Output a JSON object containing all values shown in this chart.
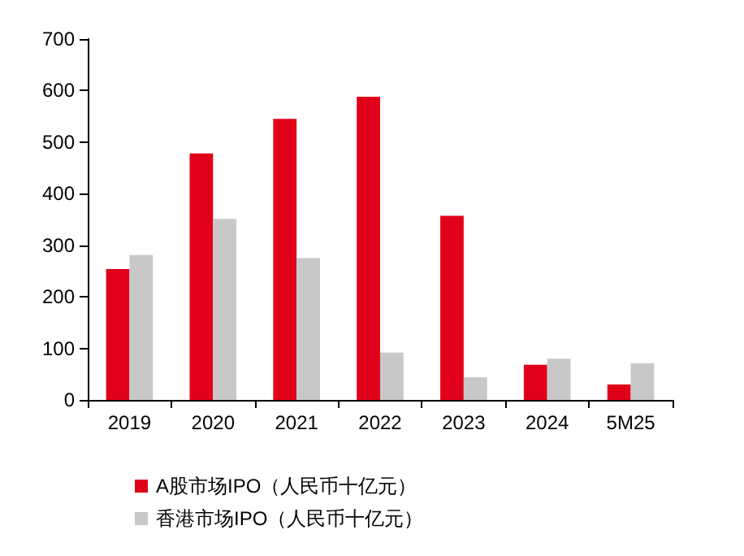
{
  "chart_data": {
    "type": "bar",
    "categories": [
      "2019",
      "2020",
      "2021",
      "2022",
      "2023",
      "2024",
      "5M25"
    ],
    "series": [
      {
        "name": "A股市场IPO（人民币十亿元）",
        "color": "#e1001a",
        "values": [
          254,
          478,
          545,
          588,
          357,
          68,
          30
        ]
      },
      {
        "name": "香港市场IPO（人民币十亿元）",
        "color": "#c8c8c8",
        "values": [
          281,
          351,
          275,
          92,
          44,
          80,
          71
        ]
      }
    ],
    "ylim": [
      0,
      700
    ],
    "yticks": [
      0,
      100,
      200,
      300,
      400,
      500,
      600,
      700
    ],
    "grid": false,
    "legend": "bottom"
  }
}
